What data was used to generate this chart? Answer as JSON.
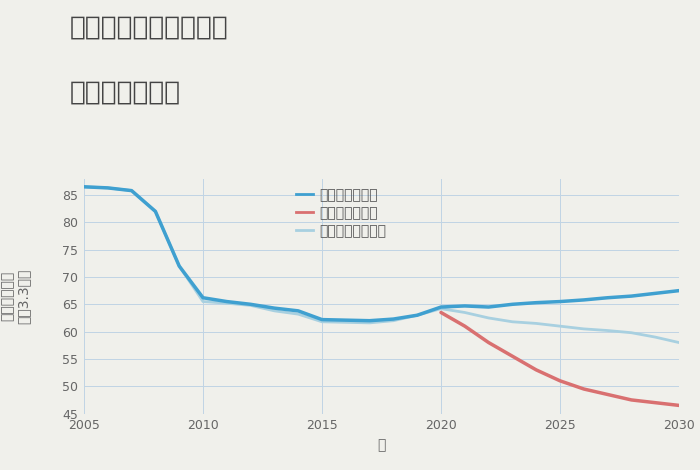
{
  "title_line1": "奈良県奈良市菅野台の",
  "title_line2": "土地の価格推移",
  "xlabel": "年",
  "ylabel_top": "単価（万円）",
  "ylabel_bottom": "坪（3.3㎡）",
  "ylim": [
    45,
    88
  ],
  "xlim": [
    2005,
    2030
  ],
  "yticks": [
    45,
    50,
    55,
    60,
    65,
    70,
    75,
    80,
    85
  ],
  "xticks": [
    2005,
    2010,
    2015,
    2020,
    2025,
    2030
  ],
  "background_color": "#f0f0eb",
  "plot_bg_color": "#f0f0eb",
  "grid_color": "#c0d4e4",
  "good_scenario": {
    "label": "グッドシナリオ",
    "color": "#3fa0d0",
    "x": [
      2005,
      2006,
      2007,
      2008,
      2009,
      2010,
      2011,
      2012,
      2013,
      2014,
      2015,
      2016,
      2017,
      2018,
      2019,
      2020,
      2021,
      2022,
      2023,
      2024,
      2025,
      2026,
      2027,
      2028,
      2029,
      2030
    ],
    "y": [
      86.5,
      86.3,
      85.8,
      82.0,
      72.0,
      66.2,
      65.5,
      65.0,
      64.3,
      63.8,
      62.2,
      62.1,
      62.0,
      62.3,
      63.0,
      64.5,
      64.7,
      64.5,
      65.0,
      65.3,
      65.5,
      65.8,
      66.2,
      66.5,
      67.0,
      67.5
    ],
    "linewidth": 2.5,
    "linestyle": "-"
  },
  "bad_scenario": {
    "label": "バッドシナリオ",
    "color": "#d97070",
    "x": [
      2020,
      2021,
      2022,
      2023,
      2024,
      2025,
      2026,
      2027,
      2028,
      2029,
      2030
    ],
    "y": [
      63.5,
      61.0,
      58.0,
      55.5,
      53.0,
      51.0,
      49.5,
      48.5,
      47.5,
      47.0,
      46.5
    ],
    "linewidth": 2.5,
    "linestyle": "-"
  },
  "normal_scenario": {
    "label": "ノーマルシナリオ",
    "color": "#a8d0e0",
    "x": [
      2005,
      2006,
      2007,
      2008,
      2009,
      2010,
      2011,
      2012,
      2013,
      2014,
      2015,
      2016,
      2017,
      2018,
      2019,
      2020,
      2021,
      2022,
      2023,
      2024,
      2025,
      2026,
      2027,
      2028,
      2029,
      2030
    ],
    "y": [
      86.5,
      86.3,
      85.8,
      82.0,
      72.0,
      65.5,
      65.2,
      64.8,
      63.8,
      63.2,
      61.8,
      61.7,
      61.6,
      62.0,
      63.0,
      64.2,
      63.5,
      62.5,
      61.8,
      61.5,
      61.0,
      60.5,
      60.2,
      59.8,
      59.0,
      58.0
    ],
    "linewidth": 2.0,
    "linestyle": "-"
  },
  "title_fontsize": 19,
  "axis_fontsize": 10,
  "tick_fontsize": 9,
  "legend_fontsize": 10
}
